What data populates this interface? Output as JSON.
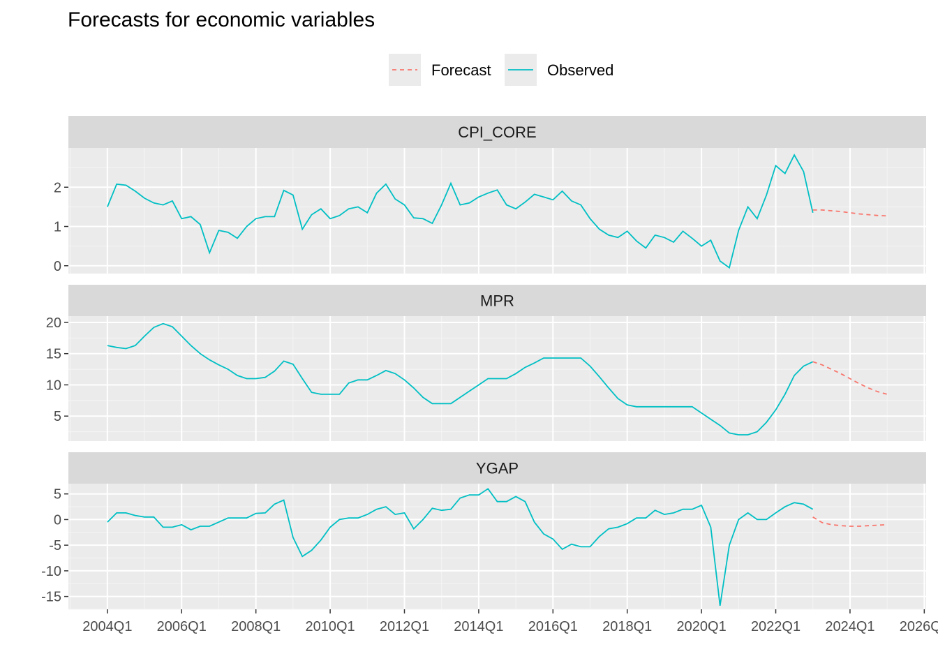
{
  "title": "Forecasts for economic variables",
  "legend": {
    "position": "top",
    "items": [
      {
        "label": "Forecast",
        "color": "#F8766D",
        "style": "dashed"
      },
      {
        "label": "Observed",
        "color": "#00BFC4",
        "style": "solid"
      }
    ]
  },
  "x_ticks": [
    "2004Q1",
    "2006Q1",
    "2008Q1",
    "2010Q1",
    "2012Q1",
    "2014Q1",
    "2016Q1",
    "2018Q1",
    "2020Q1",
    "2022Q1",
    "2024Q1",
    "2026Q1"
  ],
  "chart_data": [
    {
      "type": "line",
      "facet": "CPI_CORE",
      "x_start": "2004Q1",
      "observed_end": "2022Q4",
      "forecast_start": "2023Q1",
      "forecast_end": "2025Q1",
      "xlim": [
        "2003Q1",
        "2026Q1"
      ],
      "ylim": [
        -0.2,
        3.0
      ],
      "yticks": [
        0,
        1,
        2
      ],
      "series": [
        {
          "name": "Observed",
          "color": "#00BFC4",
          "values": [
            1.5,
            2.08,
            2.05,
            1.9,
            1.72,
            1.6,
            1.55,
            1.65,
            1.2,
            1.25,
            1.05,
            0.33,
            0.9,
            0.85,
            0.7,
            1.0,
            1.2,
            1.25,
            1.25,
            1.92,
            1.8,
            0.93,
            1.3,
            1.45,
            1.2,
            1.28,
            1.45,
            1.5,
            1.35,
            1.85,
            2.08,
            1.7,
            1.55,
            1.22,
            1.2,
            1.08,
            1.55,
            2.1,
            1.55,
            1.6,
            1.75,
            1.85,
            1.93,
            1.55,
            1.45,
            1.62,
            1.82,
            1.75,
            1.68,
            1.9,
            1.65,
            1.55,
            1.2,
            0.93,
            0.78,
            0.72,
            0.88,
            0.63,
            0.45,
            0.78,
            0.72,
            0.6,
            0.88,
            0.7,
            0.5,
            0.65,
            0.12,
            -0.05,
            0.9,
            1.5,
            1.2,
            1.8,
            2.55,
            2.35,
            2.82,
            2.4,
            1.35
          ]
        },
        {
          "name": "Forecast",
          "color": "#F8766D",
          "values": [
            1.42,
            1.42,
            1.4,
            1.38,
            1.35,
            1.32,
            1.3,
            1.28,
            1.27
          ]
        }
      ]
    },
    {
      "type": "line",
      "facet": "MPR",
      "x_start": "2004Q1",
      "observed_end": "2022Q4",
      "forecast_start": "2023Q1",
      "forecast_end": "2025Q1",
      "xlim": [
        "2003Q1",
        "2026Q1"
      ],
      "ylim": [
        1.0,
        21.0
      ],
      "yticks": [
        5,
        10,
        15,
        20
      ],
      "series": [
        {
          "name": "Observed",
          "color": "#00BFC4",
          "values": [
            16.3,
            16.0,
            15.8,
            16.3,
            17.8,
            19.2,
            19.8,
            19.3,
            17.8,
            16.3,
            15.0,
            14.0,
            13.2,
            12.5,
            11.5,
            11.0,
            11.0,
            11.2,
            12.2,
            13.8,
            13.3,
            11.0,
            8.8,
            8.5,
            8.5,
            8.5,
            10.3,
            10.8,
            10.8,
            11.5,
            12.3,
            11.8,
            10.8,
            9.5,
            8.0,
            7.0,
            7.0,
            7.0,
            8.0,
            9.0,
            10.0,
            11.0,
            11.0,
            11.0,
            11.8,
            12.8,
            13.5,
            14.3,
            14.3,
            14.3,
            14.3,
            14.3,
            13.0,
            11.3,
            9.5,
            7.8,
            6.8,
            6.5,
            6.5,
            6.5,
            6.5,
            6.5,
            6.5,
            6.5,
            5.5,
            4.5,
            3.5,
            2.3,
            2.0,
            2.0,
            2.5,
            4.0,
            6.0,
            8.5,
            11.5,
            13.0,
            13.7
          ]
        },
        {
          "name": "Forecast",
          "color": "#F8766D",
          "values": [
            13.7,
            13.2,
            12.5,
            11.8,
            11.0,
            10.2,
            9.5,
            8.9,
            8.5
          ]
        }
      ]
    },
    {
      "type": "line",
      "facet": "YGAP",
      "x_start": "2004Q1",
      "observed_end": "2022Q4",
      "forecast_start": "2023Q1",
      "forecast_end": "2025Q1",
      "xlim": [
        "2003Q1",
        "2026Q1"
      ],
      "ylim": [
        -17.5,
        7.0
      ],
      "yticks": [
        -15,
        -10,
        -5,
        0,
        5
      ],
      "series": [
        {
          "name": "Observed",
          "color": "#00BFC4",
          "values": [
            -0.5,
            1.3,
            1.3,
            0.8,
            0.5,
            0.5,
            -1.5,
            -1.5,
            -1.0,
            -2.0,
            -1.3,
            -1.3,
            -0.5,
            0.3,
            0.3,
            0.3,
            1.2,
            1.3,
            3.0,
            3.8,
            -3.5,
            -7.2,
            -6.0,
            -4.0,
            -1.5,
            0.0,
            0.3,
            0.3,
            1.0,
            2.0,
            2.5,
            1.0,
            1.3,
            -1.8,
            0.0,
            2.2,
            1.8,
            2.0,
            4.2,
            4.8,
            4.8,
            6.0,
            3.5,
            3.5,
            4.5,
            3.5,
            -0.5,
            -2.8,
            -3.8,
            -5.8,
            -4.8,
            -5.3,
            -5.3,
            -3.3,
            -1.8,
            -1.5,
            -0.8,
            0.3,
            0.3,
            1.8,
            1.0,
            1.3,
            2.0,
            2.0,
            2.8,
            -1.5,
            -16.8,
            -5.0,
            0.0,
            1.3,
            0.0,
            0.0,
            1.3,
            2.5,
            3.3,
            3.0,
            2.0
          ]
        },
        {
          "name": "Forecast",
          "color": "#F8766D",
          "values": [
            0.5,
            -0.6,
            -1.0,
            -1.2,
            -1.3,
            -1.3,
            -1.2,
            -1.1,
            -1.0
          ]
        }
      ]
    }
  ]
}
